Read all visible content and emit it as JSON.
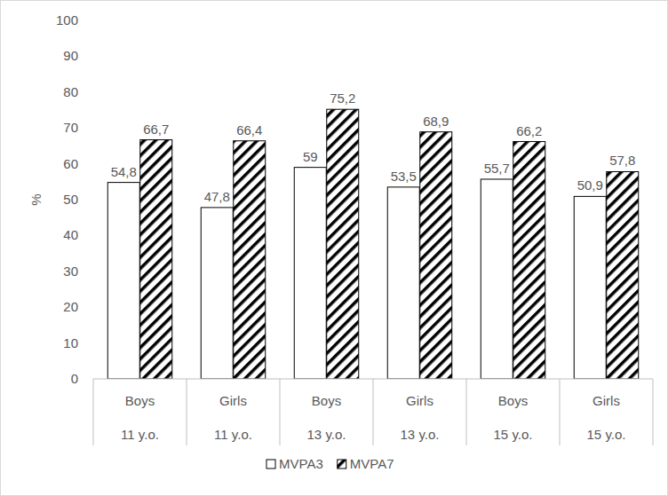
{
  "chart_data": {
    "type": "bar",
    "y_label": "%",
    "categories": [
      "Boys",
      "Girls",
      "Boys",
      "Girls",
      "Boys",
      "Girls"
    ],
    "category_groups": [
      "11 y.o.",
      "11 y.o.",
      "13 y.o.",
      "13 y.o.",
      "15 y.o.",
      "15 y.o."
    ],
    "series": [
      {
        "name": "MVPA3",
        "color": "#ffffff",
        "values": [
          54.8,
          47.8,
          59,
          53.5,
          55.7,
          50.9
        ],
        "value_labels": [
          "54,8",
          "47,8",
          "59",
          "53,5",
          "55,7",
          "50,9"
        ]
      },
      {
        "name": "MVPA7",
        "color": "#000000",
        "values": [
          66.7,
          66.4,
          75.2,
          68.9,
          66.2,
          57.8
        ],
        "value_labels": [
          "66,7",
          "66,4",
          "75,2",
          "68,9",
          "66,2",
          "57,8"
        ]
      }
    ],
    "ylim": [
      0,
      100
    ],
    "yticks": [
      0,
      10,
      20,
      30,
      40,
      50,
      60,
      70,
      80,
      90,
      100
    ],
    "grid": false,
    "data_labels": true,
    "legend": "bottom"
  }
}
